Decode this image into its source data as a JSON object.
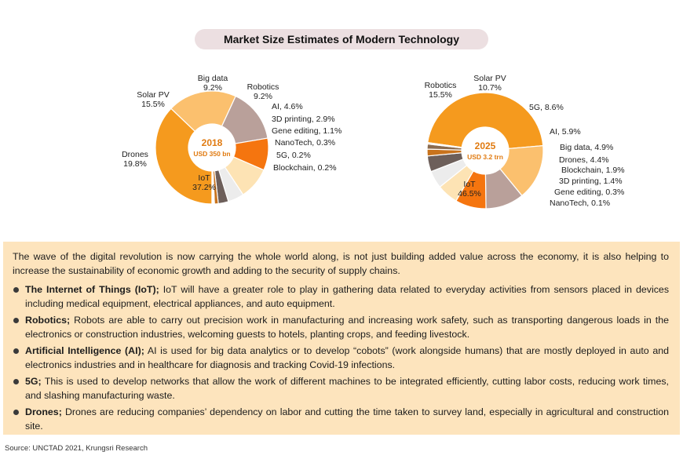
{
  "title": "Market Size Estimates of Modern Technology",
  "chart_data": [
    {
      "type": "pie",
      "center_label": {
        "year": "2018",
        "value": "USD 350 bn"
      },
      "slices": [
        {
          "label": "IoT",
          "value_text": "37.2%",
          "value": 37.2,
          "color": "#f59a1e"
        },
        {
          "label": "Drones",
          "value_text": "19.8%",
          "value": 19.8,
          "color": "#fbc06e"
        },
        {
          "label": "Solar PV",
          "value_text": "15.5%",
          "value": 15.5,
          "color": "#b9a09a"
        },
        {
          "label": "Big data",
          "value_text": "9.2%",
          "value": 9.2,
          "color": "#f5750f"
        },
        {
          "label": "Robotics",
          "value_text": "9.2%",
          "value": 9.2,
          "color": "#fde3b4"
        },
        {
          "label": "AI",
          "value_text": "4.6%",
          "value": 4.6,
          "color": "#ececec"
        },
        {
          "label": "3D printing",
          "value_text": "2.9%",
          "value": 2.9,
          "color": "#6d5f5a"
        },
        {
          "label": "Gene editing",
          "value_text": "1.1%",
          "value": 1.1,
          "color": "#c8731d"
        },
        {
          "label": "NanoTech",
          "value_text": "0.3%",
          "value": 0.3,
          "color": "#8a6b4f"
        },
        {
          "label": "5G",
          "value_text": "0.2%",
          "value": 0.2,
          "color": "#a8581a"
        },
        {
          "label": "Blockchain",
          "value_text": "0.2%",
          "value": 0.2,
          "color": "#d5c2a8"
        }
      ]
    },
    {
      "type": "pie",
      "center_label": {
        "year": "2025",
        "value": "USD 3.2 trn"
      },
      "slices": [
        {
          "label": "IoT",
          "value_text": "46.5%",
          "value": 46.5,
          "color": "#f59a1e"
        },
        {
          "label": "Robotics",
          "value_text": "15.5%",
          "value": 15.5,
          "color": "#fbc06e"
        },
        {
          "label": "Solar PV",
          "value_text": "10.7%",
          "value": 10.7,
          "color": "#b9a09a"
        },
        {
          "label": "5G",
          "value_text": "8.6%",
          "value": 8.6,
          "color": "#f5750f"
        },
        {
          "label": "AI",
          "value_text": "5.9%",
          "value": 5.9,
          "color": "#fde3b4"
        },
        {
          "label": "Big data",
          "value_text": "4.9%",
          "value": 4.9,
          "color": "#ececec"
        },
        {
          "label": "Drones",
          "value_text": "4.4%",
          "value": 4.4,
          "color": "#6d5f5a"
        },
        {
          "label": "Blockchain",
          "value_text": "1.9%",
          "value": 1.9,
          "color": "#c8731d"
        },
        {
          "label": "3D printing",
          "value_text": "1.4%",
          "value": 1.4,
          "color": "#8a6b4f"
        },
        {
          "label": "Gene editing",
          "value_text": "0.3%",
          "value": 0.3,
          "color": "#a8581a"
        },
        {
          "label": "NanoTech",
          "value_text": "0.1%",
          "value": 0.1,
          "color": "#d5c2a8"
        }
      ]
    }
  ],
  "text_box": {
    "intro": "The wave of the digital revolution is now carrying the whole world along, is not just building added value across the economy, it is also helping to increase the sustainability of economic growth and adding to the security of supply chains.",
    "bullets": [
      {
        "term": "The Internet of Things (IoT);",
        "text": " IoT will have a greater role to play in gathering data related to everyday activities from sensors placed in devices including medical equipment, electrical appliances, and auto equipment."
      },
      {
        "term": "Robotics;",
        "text": " Robots are able to carry out precision work in manufacturing and increasing work safety, such as transporting dangerous loads in the electronics or construction industries, welcoming guests to hotels, planting crops, and feeding livestock."
      },
      {
        "term": "Artificial Intelligence (AI);",
        "text": " AI is used for big data analytics or to develop “cobots” (work alongside humans) that are mostly deployed in auto and electronics industries and in healthcare for diagnosis and tracking Covid-19 infections."
      },
      {
        "term": "5G;",
        "text": " This is used to develop networks that allow the work of different machines to be integrated efficiently, cutting labor costs, reducing work times, and slashing manufacturing waste."
      },
      {
        "term": "Drones;",
        "text": " Drones are reducing companies’ dependency on labor and cutting the time taken to survey land, especially in agricultural and construction site."
      }
    ]
  },
  "source": "Source: UNCTAD 2021, Krungsri Research"
}
